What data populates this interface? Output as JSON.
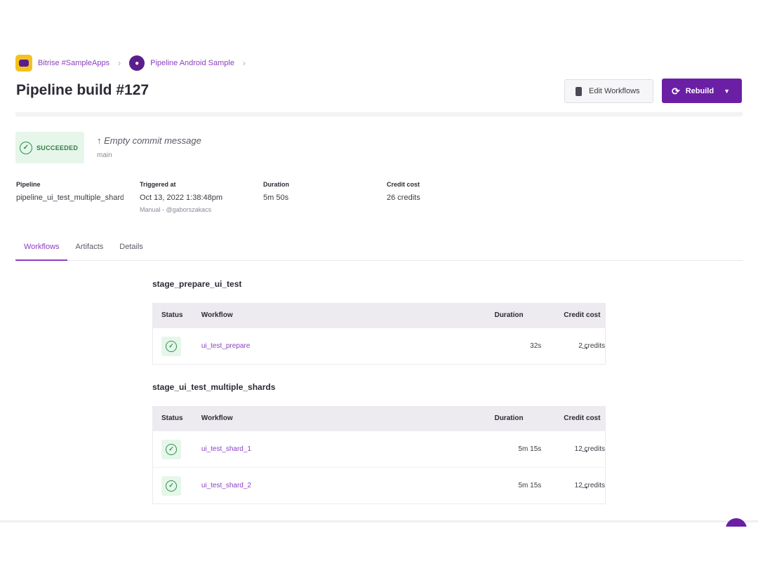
{
  "breadcrumb": {
    "workspace": "Bitrise #SampleApps",
    "project": "Pipeline Android Sample",
    "separator": "›"
  },
  "page_title": "Pipeline build #127",
  "actions": {
    "edit_workflows": "Edit Workflows",
    "rebuild": "Rebuild"
  },
  "build": {
    "status": "SUCCEEDED",
    "commit_message": "Empty commit message",
    "branch": "main"
  },
  "meta": {
    "pipeline": {
      "label": "Pipeline",
      "value": "pipeline_ui_test_multiple_shards"
    },
    "triggered": {
      "label": "Triggered at",
      "value": "Oct 13, 2022 1:38:48pm",
      "sub": "Manual - @gaborszakacs"
    },
    "duration": {
      "label": "Duration",
      "value": "5m 50s"
    },
    "credit": {
      "label": "Credit cost",
      "value": "26 credits"
    }
  },
  "tabs": [
    "Workflows",
    "Artifacts",
    "Details"
  ],
  "table_headers": {
    "status": "Status",
    "workflow": "Workflow",
    "duration": "Duration",
    "credit": "Credit cost"
  },
  "stages": [
    {
      "name": "stage_prepare_ui_test",
      "workflows": [
        {
          "name": "ui_test_prepare",
          "duration": "32s",
          "credits": "2 credits"
        }
      ]
    },
    {
      "name": "stage_ui_test_multiple_shards",
      "workflows": [
        {
          "name": "ui_test_shard_1",
          "duration": "5m 15s",
          "credits": "12 credits"
        },
        {
          "name": "ui_test_shard_2",
          "duration": "5m 15s",
          "credits": "12 credits"
        }
      ]
    }
  ],
  "colors": {
    "accent": "#6a1fa5",
    "link": "#8b3fc2",
    "success": "#2f8f4e"
  }
}
